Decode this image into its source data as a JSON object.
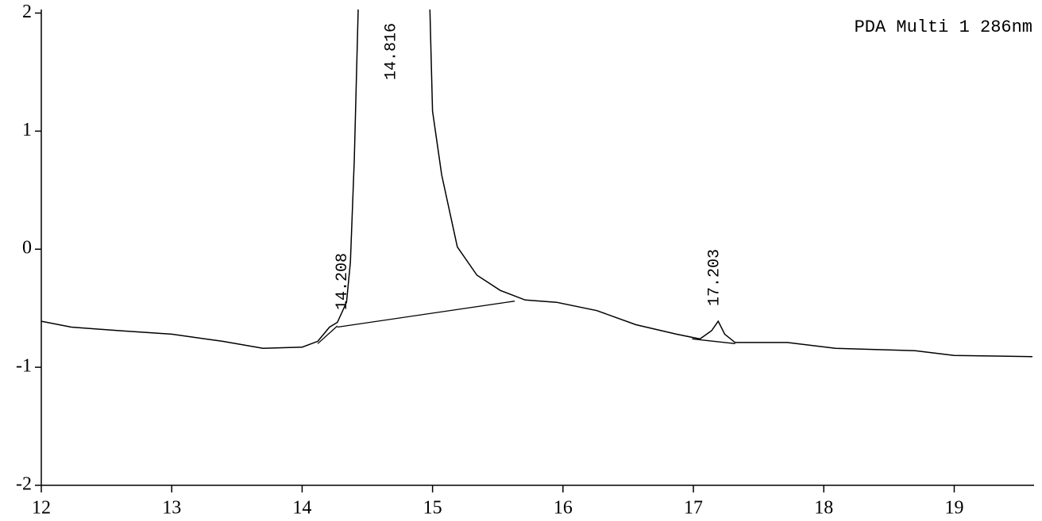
{
  "chart_data": {
    "type": "line",
    "title": "PDA Multi 1 286nm",
    "x": [
      12,
      12.23,
      12.6,
      13.0,
      13.39,
      13.7,
      14.0,
      14.12,
      14.21,
      14.27,
      14.34,
      14.37,
      14.4,
      14.43,
      null,
      14.98,
      15.0,
      15.07,
      15.19,
      15.34,
      15.52,
      15.71,
      15.95,
      16.26,
      16.56,
      16.87,
      17.05,
      17.14,
      17.19,
      17.24,
      17.32,
      17.72,
      18.09,
      18.7,
      19.0,
      19.6
    ],
    "values": [
      -0.61,
      -0.66,
      -0.69,
      -0.72,
      -0.78,
      -0.84,
      -0.83,
      -0.78,
      -0.66,
      -0.62,
      -0.45,
      -0.11,
      0.76,
      2.03,
      null,
      2.03,
      1.17,
      0.63,
      0.02,
      -0.22,
      -0.35,
      -0.43,
      -0.45,
      -0.52,
      -0.64,
      -0.72,
      -0.76,
      -0.69,
      -0.61,
      -0.72,
      -0.79,
      -0.79,
      -0.84,
      -0.86,
      -0.9,
      -0.91
    ],
    "color": "#000000",
    "baselines": [
      {
        "x": [
          14.12,
          14.27
        ],
        "values": [
          -0.8,
          -0.65
        ]
      },
      {
        "x": [
          14.27,
          15.63
        ],
        "values": [
          -0.66,
          -0.44
        ]
      },
      {
        "x": [
          16.99,
          17.32
        ],
        "values": [
          -0.76,
          -0.8
        ]
      }
    ],
    "peaks": [
      {
        "value": 14.208,
        "label": "14.208"
      },
      {
        "value": 14.816,
        "label": "14.816"
      },
      {
        "value": 17.203,
        "label": "17.203"
      }
    ],
    "xlim": [
      12,
      19.6
    ],
    "xticks": [
      12,
      13,
      14,
      15,
      16,
      17,
      18,
      19
    ],
    "ylim": [
      -2,
      2.03
    ],
    "yticks": [
      -2,
      -1,
      0,
      1,
      2
    ]
  }
}
